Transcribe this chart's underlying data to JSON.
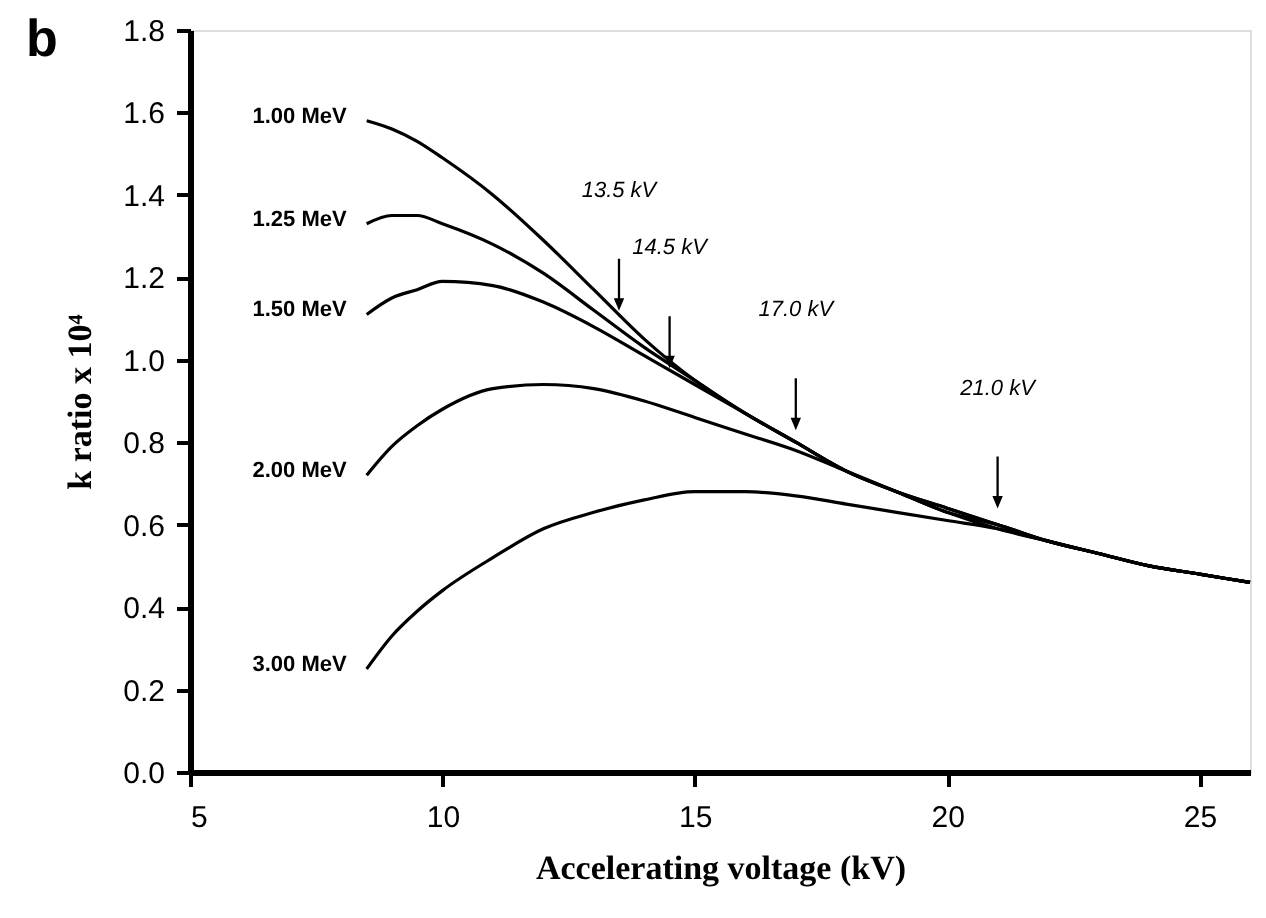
{
  "chart_data": {
    "type": "line",
    "xlabel": "Accelerating voltage (kV)",
    "ylabel": "k ratio x 10⁴",
    "x": [
      8.5,
      9,
      9.5,
      10,
      11,
      12,
      13,
      14,
      15,
      16,
      17,
      18,
      19,
      20,
      21,
      22,
      23,
      24,
      25,
      26
    ],
    "series": [
      {
        "name": "1.00 MeV",
        "color": "#000000",
        "values": [
          1.58,
          1.56,
          1.53,
          1.49,
          1.4,
          1.29,
          1.17,
          1.05,
          0.95,
          0.87,
          0.8,
          0.73,
          0.68,
          0.64,
          0.6,
          0.56,
          0.53,
          0.5,
          0.48,
          0.46
        ]
      },
      {
        "name": "1.25 MeV",
        "color": "#000000",
        "values": [
          1.33,
          1.35,
          1.35,
          1.33,
          1.28,
          1.21,
          1.12,
          1.03,
          0.95,
          0.87,
          0.8,
          0.73,
          0.68,
          0.64,
          0.6,
          0.56,
          0.53,
          0.5,
          0.48,
          0.46
        ]
      },
      {
        "name": "1.50 MeV",
        "color": "#000000",
        "values": [
          1.11,
          1.15,
          1.17,
          1.19,
          1.18,
          1.14,
          1.08,
          1.01,
          0.94,
          0.87,
          0.8,
          0.73,
          0.68,
          0.63,
          0.6,
          0.56,
          0.53,
          0.5,
          0.48,
          0.46
        ]
      },
      {
        "name": "2.00 MeV",
        "color": "#000000",
        "values": [
          0.72,
          0.79,
          0.84,
          0.88,
          0.93,
          0.94,
          0.93,
          0.9,
          0.86,
          0.82,
          0.78,
          0.73,
          0.68,
          0.63,
          0.59,
          0.56,
          0.53,
          0.5,
          0.48,
          0.46
        ]
      },
      {
        "name": "3.00 MeV",
        "color": "#000000",
        "values": [
          0.25,
          0.33,
          0.39,
          0.44,
          0.52,
          0.59,
          0.63,
          0.66,
          0.68,
          0.68,
          0.67,
          0.65,
          0.63,
          0.61,
          0.59,
          0.56,
          0.53,
          0.5,
          0.48,
          0.46
        ]
      }
    ],
    "xlim": [
      5,
      26
    ],
    "xticks": [
      5,
      10,
      15,
      20,
      25
    ],
    "ylim": [
      0,
      1.8
    ],
    "yticks": [
      {
        "value": 0,
        "label": "0.0"
      },
      {
        "value": 0.2,
        "label": "0.2"
      },
      {
        "value": 0.4,
        "label": "0.4"
      },
      {
        "value": 0.6,
        "label": "0.6"
      },
      {
        "value": 0.8,
        "label": "0.8"
      },
      {
        "value": 1.0,
        "label": "1.0"
      },
      {
        "value": 1.2,
        "label": "1.2"
      },
      {
        "value": 1.4,
        "label": "1.4"
      },
      {
        "value": 1.6,
        "label": "1.6"
      },
      {
        "value": 1.8,
        "label": "1.8"
      }
    ],
    "annotations": [
      "b",
      "13.5 kV",
      "14.5 kV",
      "17.0 kV",
      "21.0 kV"
    ],
    "grid": false
  }
}
